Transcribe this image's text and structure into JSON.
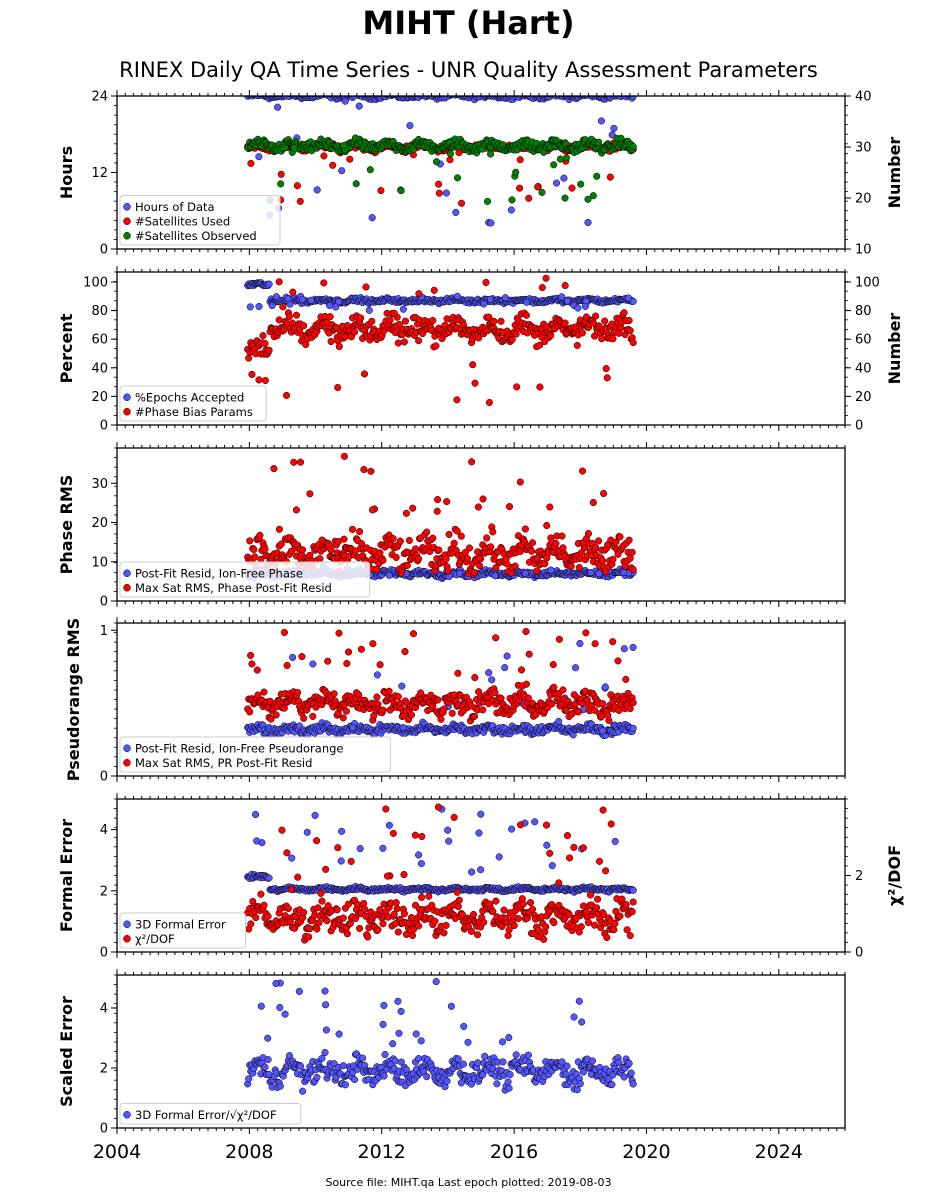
{
  "title": "MIHT (Hart)",
  "subtitle": "RINEX Daily QA Time Series - UNR Quality Assessment Parameters",
  "footer": "Source file: MIHT.qa Last epoch plotted: 2019-08-03",
  "colors": {
    "blue": "#5555ff",
    "red": "#ff0000",
    "green": "#008000"
  },
  "chart_data": [
    {
      "type": "scatter",
      "xlim": [
        2004,
        2026
      ],
      "x_ticks": [
        "2004",
        "2008",
        "2012",
        "2016",
        "2020",
        "2024"
      ],
      "ylabel": "Hours",
      "ylim": [
        0,
        24
      ],
      "y_ticks": [
        "0",
        "12",
        "24"
      ],
      "y2label": "Number",
      "y2lim": [
        10,
        40
      ],
      "y2_ticks": [
        "10",
        "20",
        "30",
        "40"
      ],
      "data_range": [
        2007.95,
        2019.6
      ],
      "legend": "lower-left",
      "series": [
        {
          "name": "Hours of Data",
          "color": "blue",
          "axis": "left",
          "typical": 24,
          "spread": 0.3,
          "outlier_range": [
            4,
            24
          ]
        },
        {
          "name": "#Satellites Used",
          "color": "red",
          "axis": "right",
          "typical": 30,
          "spread": 0.6,
          "outlier_range": [
            18,
            30
          ]
        },
        {
          "name": "#Satellites Observed",
          "color": "green",
          "axis": "right",
          "typical": 30.2,
          "spread": 0.8,
          "outlier_range": [
            19,
            31
          ]
        }
      ]
    },
    {
      "type": "scatter",
      "ylabel": "Percent",
      "ylim": [
        0,
        107
      ],
      "y_ticks": [
        "0",
        "20",
        "40",
        "60",
        "80",
        "100"
      ],
      "y2label": "Number",
      "y2lim": [
        0,
        107
      ],
      "y2_ticks": [
        "0",
        "20",
        "40",
        "60",
        "80",
        "100"
      ],
      "data_range": [
        2007.95,
        2019.6
      ],
      "legend": "lower-left",
      "series": [
        {
          "name": "%Epochs Accepted",
          "color": "blue",
          "axis": "left",
          "typical": 87,
          "spread": 1.2,
          "early_value": 98,
          "outlier_range": [
            80,
            90
          ]
        },
        {
          "name": "#Phase Bias Params",
          "color": "red",
          "axis": "right",
          "typical": 67,
          "spread": 7,
          "early_value": 53,
          "outlier_range": [
            15,
            105
          ]
        }
      ]
    },
    {
      "type": "scatter",
      "ylabel": "Phase RMS",
      "ylim": [
        0,
        39
      ],
      "y_ticks": [
        "0",
        "10",
        "20",
        "30"
      ],
      "data_range": [
        2007.95,
        2019.6
      ],
      "legend": "lower-left",
      "series": [
        {
          "name": "Post-Fit Resid, Ion-Free Phase",
          "color": "blue",
          "axis": "left",
          "typical": 7,
          "spread": 0.6,
          "outlier_range": [
            6,
            9
          ]
        },
        {
          "name": "Max Sat RMS, Phase Post-Fit Resid",
          "color": "red",
          "axis": "left",
          "typical": 12,
          "spread": 3.5,
          "outlier_range": [
            15,
            37
          ]
        }
      ]
    },
    {
      "type": "scatter",
      "ylabel": "Pseudorange RMS",
      "ylim": [
        0,
        1.05
      ],
      "y_ticks": [
        "0",
        "1"
      ],
      "data_range": [
        2007.95,
        2019.6
      ],
      "legend": "lower-left",
      "series": [
        {
          "name": "Post-Fit Resid, Ion-Free Pseudorange",
          "color": "blue",
          "axis": "left",
          "typical": 0.32,
          "spread": 0.025,
          "outlier_range": [
            0.3,
            0.98
          ]
        },
        {
          "name": "Max Sat RMS, PR Post-Fit Resid",
          "color": "red",
          "axis": "left",
          "typical": 0.5,
          "spread": 0.07,
          "outlier_range": [
            0.65,
            1.0
          ]
        }
      ]
    },
    {
      "type": "scatter",
      "ylabel": "Formal Error",
      "ylim": [
        0,
        5
      ],
      "y_ticks": [
        "0",
        "2",
        "4"
      ],
      "y2label": "χ²/DOF",
      "y2lim": [
        0,
        4
      ],
      "y2_ticks": [
        "0",
        "2"
      ],
      "data_range": [
        2007.95,
        2019.6
      ],
      "legend": "lower-left",
      "series": [
        {
          "name": "3D Formal Error",
          "color": "blue",
          "axis": "left",
          "typical": 2.05,
          "spread": 0.05,
          "early_value": 2.45,
          "outlier_range": [
            2.5,
            4.8
          ]
        },
        {
          "name": "χ²/DOF",
          "color": "red",
          "axis": "right",
          "typical": 0.9,
          "spread": 0.35,
          "outlier_range": [
            1.8,
            3.9
          ]
        }
      ]
    },
    {
      "type": "scatter",
      "ylabel": "Scaled Error",
      "ylim": [
        0,
        5.1
      ],
      "y_ticks": [
        "0",
        "2",
        "4"
      ],
      "data_range": [
        2007.95,
        2019.6
      ],
      "legend": "lower-left",
      "series": [
        {
          "name": "3D Formal Error/√χ²/DOF",
          "color": "blue",
          "axis": "left",
          "typical": 1.9,
          "spread": 0.35,
          "outlier_range": [
            2.8,
            4.9
          ]
        }
      ]
    }
  ]
}
